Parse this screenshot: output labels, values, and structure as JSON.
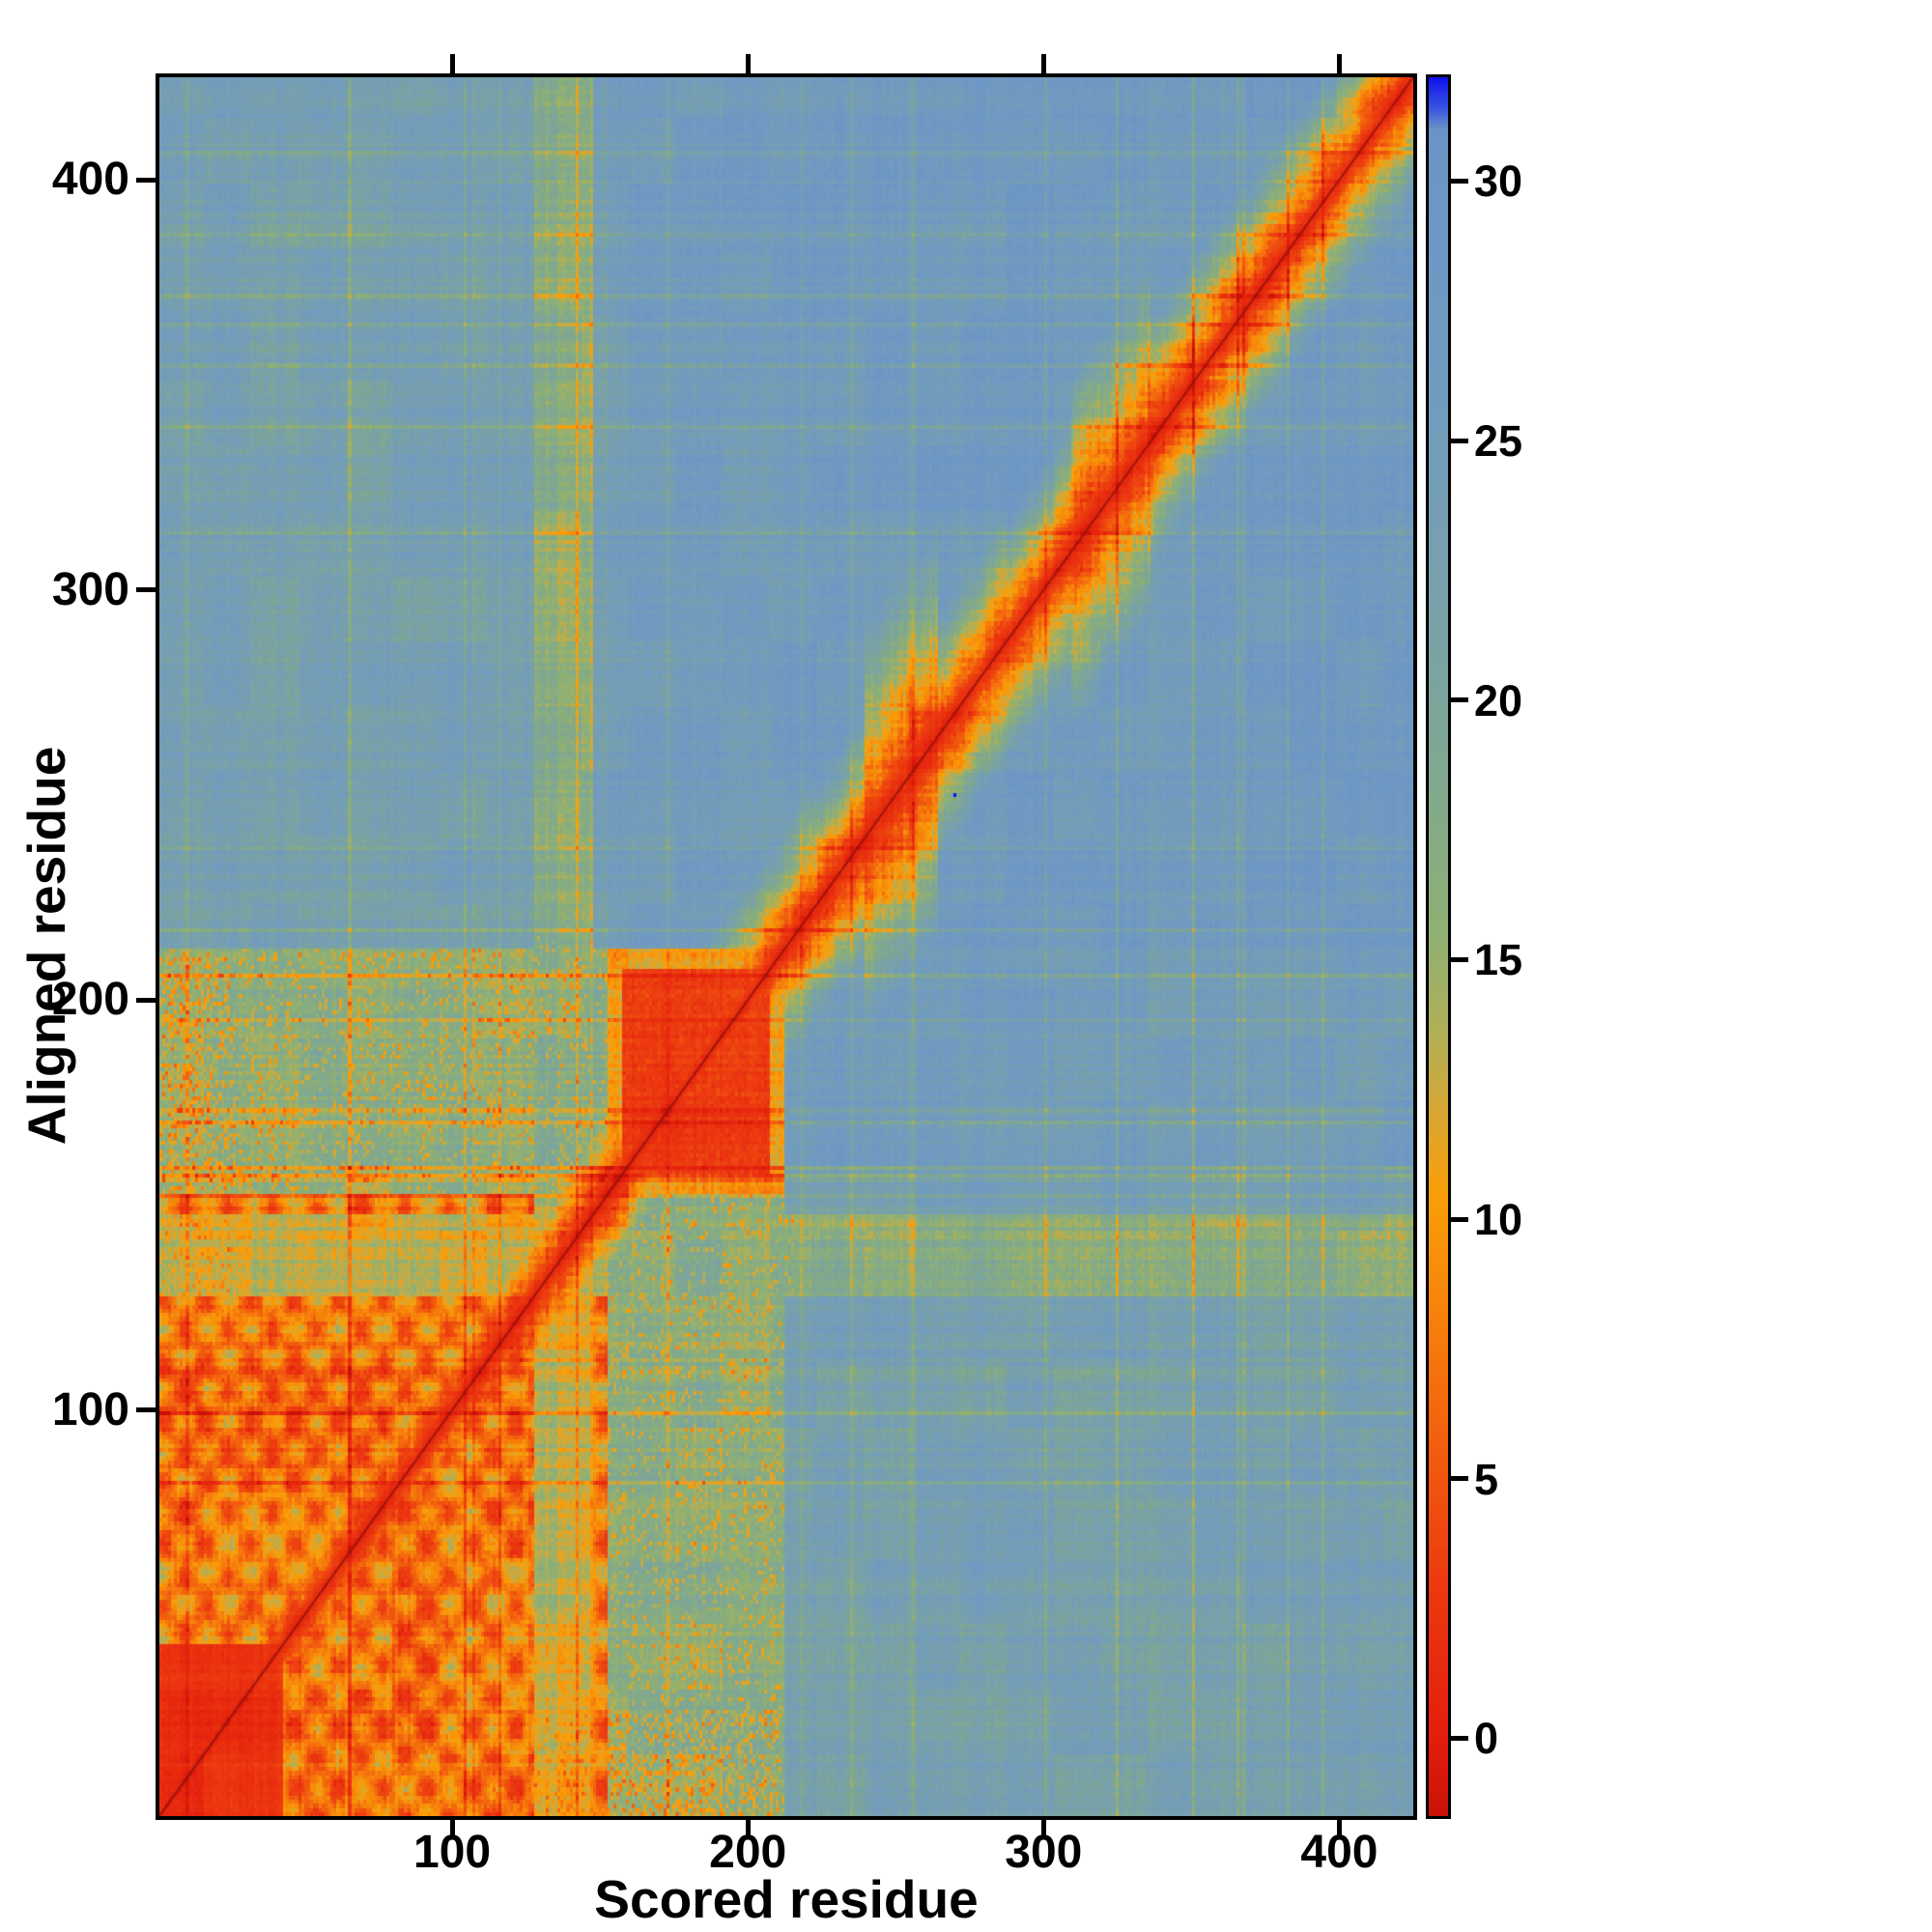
{
  "figure": {
    "background": "#ffffff",
    "frame_color": "#000000"
  },
  "chart_data": {
    "type": "heatmap",
    "title": "",
    "xlabel": "Scored residue",
    "ylabel": "Aligned residue",
    "x_range": [
      1,
      425
    ],
    "y_range": [
      1,
      425
    ],
    "x_tick_values": [
      100,
      200,
      300,
      400
    ],
    "x_tick_labels": [
      "100",
      "200",
      "300",
      "400"
    ],
    "y_tick_values": [
      100,
      200,
      300,
      400
    ],
    "y_tick_labels": [
      "100",
      "200",
      "300",
      "400"
    ],
    "grid": false,
    "value_semantics": "aligned-error-like score: red = low (0), blue = high (30+)",
    "colorbar": {
      "position": "right",
      "range": [
        -1.5,
        32
      ],
      "tick_values": [
        0,
        5,
        10,
        15,
        20,
        25,
        30
      ],
      "tick_labels": [
        "0",
        "5",
        "10",
        "15",
        "20",
        "25",
        "30"
      ],
      "color_stops": [
        [
          -1.5,
          "#c91207"
        ],
        [
          0.0,
          "#e31e0d"
        ],
        [
          3.0,
          "#ec3a10"
        ],
        [
          6.0,
          "#f3630e"
        ],
        [
          8.5,
          "#f7860b"
        ],
        [
          10.5,
          "#f99f08"
        ],
        [
          12.0,
          "#d9a632"
        ],
        [
          13.5,
          "#b2af55"
        ],
        [
          15.5,
          "#8fb073"
        ],
        [
          18.0,
          "#82a98b"
        ],
        [
          20.5,
          "#7ba3a0"
        ],
        [
          23.0,
          "#769fb1"
        ],
        [
          26.0,
          "#719bbe"
        ],
        [
          29.0,
          "#6d97c4"
        ],
        [
          31.0,
          "#6a94c6"
        ],
        [
          31.4,
          "#3a55e0"
        ],
        [
          32.0,
          "#0f12ee"
        ]
      ]
    },
    "heatmap_model": {
      "seed": 1337,
      "size": 425,
      "background_value": 26.5,
      "diagonal": {
        "min": 0.4,
        "fade": 0.85
      },
      "bulges": [
        {
          "start": 240,
          "end": 264,
          "fade": 0.5
        },
        {
          "start": 310,
          "end": 336,
          "fade": 0.6
        }
      ],
      "domain1": {
        "start": 1,
        "end": 152,
        "value": 7.5,
        "texture": 4.5
      },
      "domain1_core": {
        "start": 1,
        "end": 42,
        "value": 2.0
      },
      "domain2": {
        "start": 158,
        "end": 207,
        "value": 3.0
      },
      "domain2_halo": {
        "start": 153,
        "end": 212,
        "value": 10.0
      },
      "linker": {
        "start": 128,
        "end": 147,
        "in_domain_value": 12.5,
        "long_range_value": 16.5
      },
      "inter_domain_value": 16.5,
      "domain1_vs_rest_value": 23.0,
      "domain2_vs_rest_value": 25.0,
      "edge_speckle": {
        "end": 26,
        "reach": 210,
        "value": 9.0,
        "density": 0.3
      },
      "speckle_zone": {
        "limit": 215,
        "density": 0.12,
        "drop": 5.0
      },
      "outlier": {
        "x": 270,
        "y": 250,
        "value": 32
      },
      "noise": {
        "row_amp": 1.6,
        "col_amp": 1.3,
        "cell_amp": 1.4,
        "block_amp": 1.6,
        "streak_chance": 0.05,
        "streak_drop": 4.5
      }
    }
  }
}
